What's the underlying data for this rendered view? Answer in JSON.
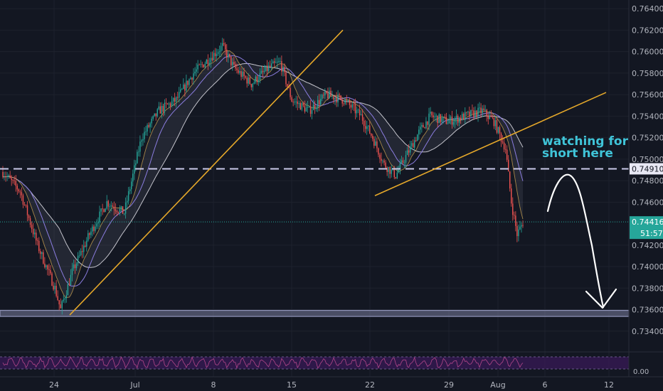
{
  "theme": {
    "background": "#131722",
    "grid": "#1e222d",
    "axis_text": "#b2b5be",
    "bull": "#26a69a",
    "bear": "#ef5350",
    "trendline": "#e5a82a",
    "level_dashed": "#c9c9e8",
    "support_zone": "#8f93b8",
    "last_price_line": "#26a69a",
    "annotation_text": "#40c4d8",
    "arrow": "#ffffff",
    "ma_fast": "#8b7de0",
    "ma_slow": "#c4c4cc",
    "oscillator_line": "#b3468a",
    "oscillator_fill": "#3a1a5a"
  },
  "chart_data": {
    "type": "candlestick",
    "y_axis": {
      "range": [
        0.7324,
        0.7648
      ],
      "ticks": [
        "0.76400",
        "0.76200",
        "0.76000",
        "0.75800",
        "0.75600",
        "0.75400",
        "0.75200",
        "0.75000",
        "0.74800",
        "0.74600",
        "0.74200",
        "0.74000",
        "0.73800",
        "0.73600",
        "0.73400"
      ]
    },
    "x_axis": {
      "ticks": [
        "24",
        "Jul",
        "8",
        "15",
        "22",
        "29",
        "Aug",
        "6",
        "12"
      ]
    },
    "price_levels": [
      {
        "name": "dashed-resistance",
        "value": 0.7491,
        "label": "0.74910"
      },
      {
        "name": "last-price",
        "value": 0.74416,
        "label": "0.74416",
        "countdown": "51:57"
      }
    ],
    "support_zone": {
      "low": 0.7355,
      "high": 0.7358
    },
    "annotation": {
      "text_line1": "watching for",
      "text_line2": "short here"
    },
    "trendlines": [
      {
        "name": "rising-trendline",
        "from": [
          0,
          0.7355
        ],
        "to": [
          1,
          0.762
        ]
      },
      {
        "name": "channel-trendline",
        "from": [
          0,
          0.7466
        ],
        "to": [
          1,
          0.7562
        ]
      }
    ],
    "oscillator": {
      "axis_label": "0.00"
    },
    "series_outline": [
      [
        0,
        0.7488
      ],
      [
        3,
        0.747
      ],
      [
        6,
        0.742
      ],
      [
        9,
        0.738
      ],
      [
        10,
        0.736
      ],
      [
        12,
        0.7395
      ],
      [
        15,
        0.743
      ],
      [
        18,
        0.746
      ],
      [
        21,
        0.745
      ],
      [
        24,
        0.752
      ],
      [
        27,
        0.7545
      ],
      [
        30,
        0.7555
      ],
      [
        33,
        0.758
      ],
      [
        36,
        0.7595
      ],
      [
        38,
        0.7605
      ],
      [
        40,
        0.7585
      ],
      [
        43,
        0.757
      ],
      [
        46,
        0.7585
      ],
      [
        48,
        0.759
      ],
      [
        50,
        0.7555
      ],
      [
        53,
        0.7545
      ],
      [
        56,
        0.756
      ],
      [
        59,
        0.7555
      ],
      [
        62,
        0.754
      ],
      [
        64,
        0.752
      ],
      [
        66,
        0.7495
      ],
      [
        68,
        0.7485
      ],
      [
        70,
        0.7505
      ],
      [
        72,
        0.7525
      ],
      [
        74,
        0.754
      ],
      [
        77,
        0.7535
      ],
      [
        80,
        0.754
      ],
      [
        83,
        0.7545
      ],
      [
        85,
        0.7535
      ],
      [
        87,
        0.751
      ],
      [
        88,
        0.746
      ],
      [
        89,
        0.743
      ],
      [
        90,
        0.7441
      ]
    ]
  }
}
